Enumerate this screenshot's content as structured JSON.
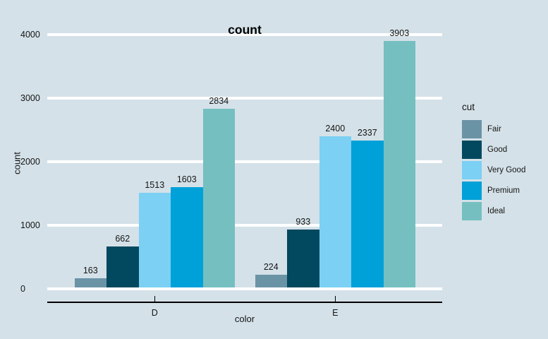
{
  "chart_data": {
    "type": "bar",
    "title": "count",
    "xlabel": "color",
    "ylabel": "count",
    "categories": [
      "D",
      "E"
    ],
    "series": [
      {
        "name": "Fair",
        "color": "#6b93a6",
        "values": [
          163,
          224
        ]
      },
      {
        "name": "Good",
        "color": "#02495f",
        "values": [
          662,
          933
        ]
      },
      {
        "name": "Very Good",
        "color": "#7bd0f4",
        "values": [
          1513,
          2400
        ]
      },
      {
        "name": "Premium",
        "color": "#00a0d8",
        "values": [
          1603,
          2337
        ]
      },
      {
        "name": "Ideal",
        "color": "#75bfc0",
        "values": [
          2834,
          3903
        ]
      }
    ],
    "y_ticks": [
      0,
      1000,
      2000,
      3000,
      4000
    ],
    "ylim": [
      0,
      4000
    ],
    "grid": true,
    "bar_value_labels_shown": true,
    "legend_title": "cut",
    "legend_position": "right"
  },
  "colors": {
    "background": "#d4e1e8",
    "gridline": "#ffffff",
    "axis_line": "#000000",
    "text": "#151515"
  }
}
